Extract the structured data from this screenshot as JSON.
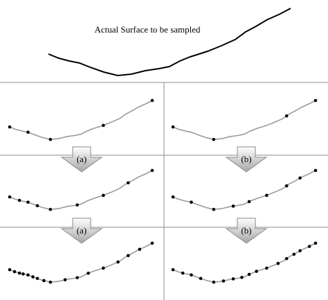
{
  "title": "Actual Surface to be sampled",
  "arrows": [
    {
      "label": "(a)"
    },
    {
      "label": "(b)"
    },
    {
      "label": "(a)"
    },
    {
      "label": "(b)"
    }
  ]
}
